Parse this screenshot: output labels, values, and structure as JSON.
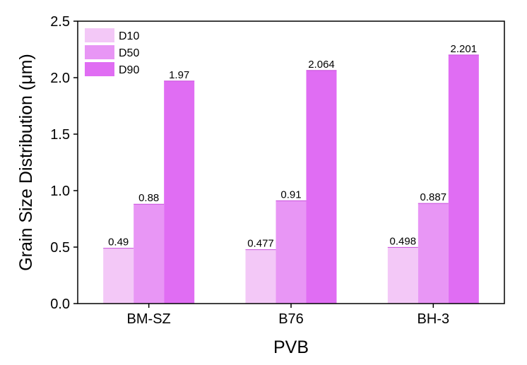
{
  "chart_data": {
    "type": "bar",
    "xlabel": "PVB",
    "ylabel": "Grain Size Distribution (μm)",
    "ylim": [
      0,
      2.5
    ],
    "yticks": [
      0.0,
      0.5,
      1.0,
      1.5,
      2.0,
      2.5
    ],
    "ytick_labels": [
      "0.0",
      "0.5",
      "1.0",
      "1.5",
      "2.0",
      "2.5"
    ],
    "categories": [
      "BM-SZ",
      "B76",
      "BH-3"
    ],
    "series": [
      {
        "name": "D10",
        "values": [
          0.49,
          0.477,
          0.498
        ],
        "labels": [
          "0.49",
          "0.477",
          "0.498"
        ],
        "color": "#f3c8f7"
      },
      {
        "name": "D50",
        "values": [
          0.88,
          0.91,
          0.887
        ],
        "labels": [
          "0.88",
          "0.91",
          "0.887"
        ],
        "color": "#e896f5"
      },
      {
        "name": "D90",
        "values": [
          1.97,
          2.064,
          2.201
        ],
        "labels": [
          "1.97",
          "2.064",
          "2.201"
        ],
        "color": "#e06df3"
      }
    ],
    "legend": "top-left",
    "grid": false
  }
}
